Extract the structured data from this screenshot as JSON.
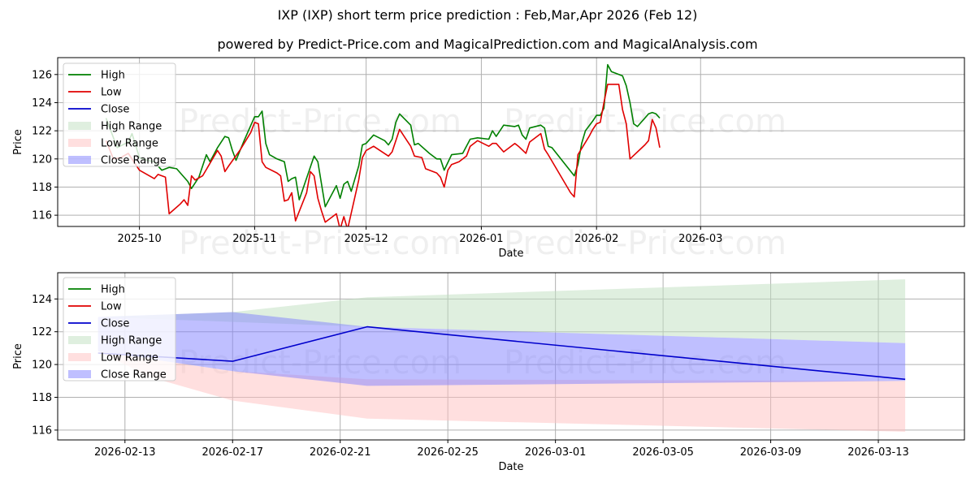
{
  "titles": {
    "main": "IXP (IXP) short term price prediction : Feb,Mar,Apr 2026 (Feb 12)",
    "sub": "powered by Predict-Price.com and MagicalPrediction.com and MagicalAnalysis.com"
  },
  "watermark": "Predict-Price.com",
  "colors": {
    "high": "#008000",
    "low": "#e00000",
    "close": "#0000cc",
    "high_range": "#bfdfbf",
    "low_range": "#ffbfbf",
    "close_range": "#7f7fff"
  },
  "legend": [
    {
      "key": "high",
      "label": "High",
      "kind": "line"
    },
    {
      "key": "low",
      "label": "Low",
      "kind": "line"
    },
    {
      "key": "close",
      "label": "Close",
      "kind": "line"
    },
    {
      "key": "high_range",
      "label": "High Range",
      "kind": "patch"
    },
    {
      "key": "low_range",
      "label": "Low Range",
      "kind": "patch"
    },
    {
      "key": "close_range",
      "label": "Close Range",
      "kind": "patch"
    }
  ],
  "chart_data": [
    {
      "type": "line",
      "panel": "top",
      "xlabel": "Date",
      "ylabel": "Price",
      "xlim": [
        -22,
        222
      ],
      "ylim": [
        115.2,
        127.2
      ],
      "x_ticks": [
        {
          "x": 0,
          "label": "2025-10"
        },
        {
          "x": 31,
          "label": "2025-11"
        },
        {
          "x": 61,
          "label": "2025-12"
        },
        {
          "x": 92,
          "label": "2026-01"
        },
        {
          "x": 123,
          "label": "2026-02"
        },
        {
          "x": 151,
          "label": "2026-03"
        }
      ],
      "y_ticks": [
        116,
        118,
        120,
        122,
        124,
        126
      ],
      "high_points": [
        [
          -9,
          122.9
        ],
        [
          -6,
          120.8
        ],
        [
          -3,
          121.2
        ],
        [
          -2,
          121.8
        ],
        [
          0,
          120.1
        ],
        [
          2,
          119.9
        ],
        [
          4,
          119.8
        ],
        [
          6,
          119.2
        ],
        [
          8,
          119.4
        ],
        [
          10,
          119.3
        ],
        [
          13,
          118.4
        ],
        [
          14,
          117.9
        ],
        [
          16,
          118.7
        ],
        [
          18,
          120.3
        ],
        [
          19,
          119.8
        ],
        [
          21,
          120.8
        ],
        [
          23,
          121.6
        ],
        [
          24,
          121.5
        ],
        [
          25,
          120.6
        ],
        [
          26,
          119.9
        ],
        [
          28,
          121.2
        ],
        [
          30,
          122.4
        ],
        [
          31,
          123.0
        ],
        [
          32,
          123.0
        ],
        [
          33,
          123.4
        ],
        [
          34,
          121.1
        ],
        [
          35,
          120.3
        ],
        [
          37,
          120.0
        ],
        [
          39,
          119.8
        ],
        [
          40,
          118.4
        ],
        [
          41,
          118.6
        ],
        [
          42,
          118.7
        ],
        [
          43,
          117.1
        ],
        [
          47,
          120.2
        ],
        [
          48,
          119.8
        ],
        [
          50,
          116.6
        ],
        [
          53,
          118.1
        ],
        [
          54,
          117.2
        ],
        [
          55,
          118.2
        ],
        [
          56,
          118.4
        ],
        [
          57,
          117.7
        ],
        [
          59,
          119.5
        ],
        [
          60,
          121.0
        ],
        [
          61,
          121.1
        ],
        [
          63,
          121.7
        ],
        [
          66,
          121.3
        ],
        [
          67,
          121.0
        ],
        [
          68,
          121.4
        ],
        [
          69,
          122.6
        ],
        [
          70,
          123.2
        ],
        [
          73,
          122.4
        ],
        [
          74,
          121.0
        ],
        [
          75,
          121.1
        ],
        [
          78,
          120.4
        ],
        [
          80,
          120.0
        ],
        [
          81,
          120.0
        ],
        [
          82,
          119.2
        ],
        [
          84,
          120.3
        ],
        [
          87,
          120.4
        ],
        [
          89,
          121.4
        ],
        [
          91,
          121.5
        ],
        [
          94,
          121.4
        ],
        [
          95,
          122.0
        ],
        [
          96,
          121.6
        ],
        [
          98,
          122.4
        ],
        [
          101,
          122.3
        ],
        [
          102,
          122.4
        ],
        [
          103,
          121.7
        ],
        [
          104,
          121.4
        ],
        [
          105,
          122.2
        ],
        [
          108,
          122.4
        ],
        [
          109,
          122.2
        ],
        [
          110,
          120.9
        ],
        [
          111,
          120.8
        ],
        [
          117,
          118.8
        ],
        [
          118,
          119.6
        ],
        [
          119,
          121.1
        ],
        [
          120,
          122.0
        ],
        [
          122,
          122.7
        ],
        [
          123,
          123.1
        ],
        [
          124,
          123.1
        ],
        [
          125,
          123.6
        ],
        [
          126,
          126.7
        ],
        [
          127,
          126.2
        ],
        [
          130,
          125.9
        ],
        [
          131,
          125.2
        ],
        [
          132,
          124.0
        ],
        [
          133,
          122.5
        ],
        [
          134,
          122.3
        ],
        [
          136,
          122.9
        ],
        [
          137,
          123.2
        ],
        [
          138,
          123.3
        ],
        [
          139,
          123.2
        ],
        [
          140,
          122.9
        ]
      ],
      "low_points": [
        [
          -9,
          121.3
        ],
        [
          -7,
          120.0
        ],
        [
          -5,
          120.1
        ],
        [
          -3,
          120.4
        ],
        [
          0,
          119.2
        ],
        [
          4,
          118.6
        ],
        [
          5,
          118.9
        ],
        [
          7,
          118.7
        ],
        [
          8,
          116.1
        ],
        [
          11,
          116.8
        ],
        [
          12,
          117.1
        ],
        [
          13,
          116.7
        ],
        [
          14,
          118.8
        ],
        [
          15,
          118.5
        ],
        [
          17,
          118.8
        ],
        [
          21,
          120.6
        ],
        [
          22,
          120.2
        ],
        [
          23,
          119.1
        ],
        [
          24,
          119.5
        ],
        [
          27,
          120.6
        ],
        [
          30,
          121.9
        ],
        [
          31,
          122.6
        ],
        [
          32,
          122.5
        ],
        [
          33,
          119.8
        ],
        [
          34,
          119.4
        ],
        [
          37,
          119.0
        ],
        [
          38,
          118.8
        ],
        [
          39,
          117.0
        ],
        [
          40,
          117.1
        ],
        [
          41,
          117.6
        ],
        [
          42,
          115.6
        ],
        [
          45,
          117.6
        ],
        [
          46,
          119.1
        ],
        [
          47,
          118.8
        ],
        [
          48,
          117.2
        ],
        [
          49,
          116.3
        ],
        [
          50,
          115.5
        ],
        [
          53,
          116.1
        ],
        [
          54,
          115.0
        ],
        [
          55,
          115.9
        ],
        [
          56,
          115.0
        ],
        [
          59,
          118.5
        ],
        [
          60,
          120.1
        ],
        [
          61,
          120.6
        ],
        [
          63,
          120.9
        ],
        [
          67,
          120.2
        ],
        [
          68,
          120.5
        ],
        [
          70,
          122.1
        ],
        [
          72,
          121.3
        ],
        [
          73,
          120.9
        ],
        [
          74,
          120.2
        ],
        [
          76,
          120.1
        ],
        [
          77,
          119.3
        ],
        [
          80,
          119.0
        ],
        [
          81,
          118.7
        ],
        [
          82,
          118.0
        ],
        [
          83,
          119.2
        ],
        [
          84,
          119.6
        ],
        [
          86,
          119.8
        ],
        [
          88,
          120.2
        ],
        [
          89,
          120.9
        ],
        [
          91,
          121.3
        ],
        [
          94,
          120.9
        ],
        [
          95,
          121.1
        ],
        [
          96,
          121.1
        ],
        [
          98,
          120.5
        ],
        [
          101,
          121.1
        ],
        [
          102,
          120.9
        ],
        [
          104,
          120.4
        ],
        [
          105,
          121.2
        ],
        [
          108,
          121.8
        ],
        [
          109,
          120.7
        ],
        [
          110,
          120.3
        ],
        [
          116,
          117.6
        ],
        [
          117,
          117.3
        ],
        [
          118,
          120.3
        ],
        [
          121,
          121.6
        ],
        [
          122,
          122.1
        ],
        [
          123,
          122.5
        ],
        [
          124,
          122.6
        ],
        [
          125,
          124.0
        ],
        [
          126,
          125.3
        ],
        [
          129,
          125.3
        ],
        [
          130,
          123.5
        ],
        [
          131,
          122.5
        ],
        [
          132,
          120.0
        ],
        [
          136,
          121.0
        ],
        [
          137,
          121.3
        ],
        [
          138,
          122.8
        ],
        [
          139,
          122.2
        ],
        [
          140,
          120.8
        ]
      ]
    },
    {
      "type": "line",
      "panel": "bottom",
      "xlabel": "Date",
      "ylabel": "Price",
      "xlim": [
        -2.5,
        31.2
      ],
      "ylim": [
        115.4,
        125.6
      ],
      "x_ticks": [
        {
          "x": 0,
          "label": "2026-02-13"
        },
        {
          "x": 4,
          "label": "2026-02-17"
        },
        {
          "x": 8,
          "label": "2026-02-21"
        },
        {
          "x": 12,
          "label": "2026-02-25"
        },
        {
          "x": 16,
          "label": "2026-03-01"
        },
        {
          "x": 20,
          "label": "2026-03-05"
        },
        {
          "x": 24,
          "label": "2026-03-09"
        },
        {
          "x": 28,
          "label": "2026-03-13"
        }
      ],
      "y_ticks": [
        116,
        118,
        120,
        122,
        124
      ],
      "ranges": [
        {
          "key": "high_range",
          "upper": [
            [
              -1,
              122.9
            ],
            [
              4,
              123.2
            ],
            [
              9,
              124.1
            ],
            [
              29,
              125.2
            ]
          ],
          "lower": [
            [
              -1,
              122.9
            ],
            [
              4,
              122.6
            ],
            [
              9,
              122.3
            ],
            [
              29,
              121.3
            ]
          ]
        },
        {
          "key": "low_range",
          "upper": [
            [
              -1,
              120.8
            ],
            [
              4,
              119.6
            ],
            [
              9,
              119.1
            ],
            [
              29,
              119.0
            ]
          ],
          "lower": [
            [
              -1,
              120.8
            ],
            [
              1,
              119.2
            ],
            [
              4,
              117.8
            ],
            [
              9,
              116.7
            ],
            [
              29,
              115.9
            ]
          ]
        },
        {
          "key": "close_range",
          "upper": [
            [
              -1,
              122.9
            ],
            [
              4,
              123.2
            ],
            [
              9,
              122.3
            ],
            [
              29,
              121.3
            ]
          ],
          "lower": [
            [
              -1,
              120.8
            ],
            [
              4,
              119.6
            ],
            [
              9,
              118.7
            ],
            [
              29,
              119.0
            ]
          ]
        }
      ],
      "close_points": [
        [
          -1,
          120.7
        ],
        [
          4,
          120.2
        ],
        [
          9,
          122.3
        ],
        [
          29,
          119.1
        ]
      ]
    }
  ]
}
